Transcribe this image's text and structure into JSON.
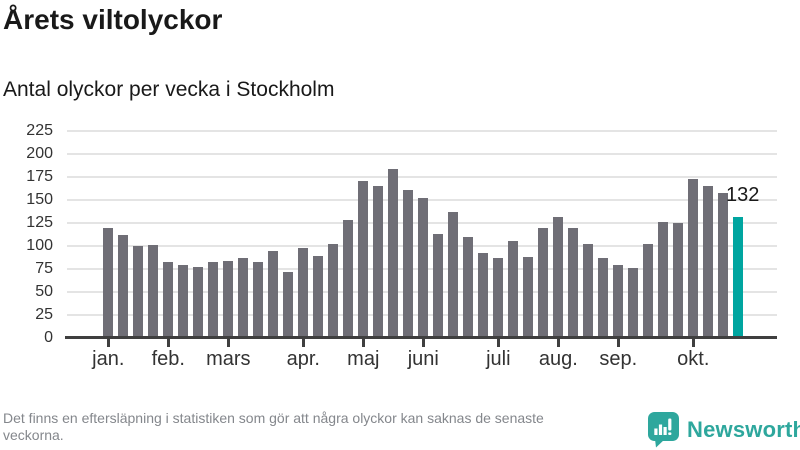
{
  "chart_data": {
    "type": "bar",
    "title": "Årets viltolyckor",
    "subtitle": "Antal olyckor per vecka i Stockholm",
    "values": [
      120,
      112,
      100,
      101,
      83,
      79,
      77,
      83,
      84,
      87,
      83,
      95,
      72,
      98,
      89,
      102,
      128,
      171,
      165,
      184,
      161,
      152,
      113,
      137,
      110,
      92,
      87,
      106,
      88,
      120,
      132,
      120,
      102,
      87,
      79,
      76,
      102,
      126,
      125,
      173,
      165,
      158,
      132
    ],
    "highlight": {
      "index": 42,
      "label": "132"
    },
    "yticks": [
      0,
      25,
      50,
      75,
      100,
      125,
      150,
      175,
      200,
      225
    ],
    "ylim": [
      0,
      231
    ],
    "month_ticks": [
      {
        "label": "jan.",
        "index": 0
      },
      {
        "label": "feb.",
        "index": 4
      },
      {
        "label": "mars",
        "index": 8
      },
      {
        "label": "apr.",
        "index": 13
      },
      {
        "label": "maj",
        "index": 17
      },
      {
        "label": "juni",
        "index": 21
      },
      {
        "label": "juli",
        "index": 26
      },
      {
        "label": "aug.",
        "index": 30
      },
      {
        "label": "sep.",
        "index": 34
      },
      {
        "label": "okt.",
        "index": 39
      }
    ],
    "grid": true,
    "legend": false
  },
  "footer": {
    "note": "Det finns en eftersläpning i statistiken som gör att några olyckor kan saknas de senaste veckorna.",
    "brand": "Newsworthy"
  },
  "colors": {
    "accent_teal": "#00a5a0",
    "bar_gray": "#6f6e76",
    "brand_teal": "#2ea79d",
    "grid": "#e4e4e4",
    "axis": "#3f3f3f",
    "text_dark": "#191919",
    "text_muted": "#84878c"
  }
}
